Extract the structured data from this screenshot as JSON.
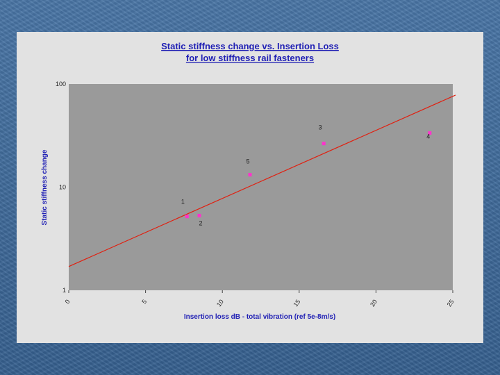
{
  "chart_data": {
    "type": "scatter",
    "title": [
      "Static stiffness change vs. Insertion Loss",
      "for low stiffness rail fasteners"
    ],
    "xlabel": "Insertion loss dB - total vibration (ref 5e-8m/s)",
    "ylabel": "Static stiffness change",
    "xlim": [
      0,
      25
    ],
    "ylim": [
      1,
      100
    ],
    "yscale": "log",
    "x_ticks": [
      "0",
      "5",
      "10",
      "15",
      "20",
      "25"
    ],
    "y_ticks": [
      "1",
      "10",
      "100"
    ],
    "grid": false,
    "plot_background": "#9a9a9a",
    "point_color": "#ff33cc",
    "trendline_color": "#e02010",
    "points": [
      {
        "label": "1",
        "x": 7.7,
        "y": 5.2
      },
      {
        "label": "2",
        "x": 8.5,
        "y": 5.3
      },
      {
        "label": "3",
        "x": 16.6,
        "y": 26.5
      },
      {
        "label": "4",
        "x": 23.5,
        "y": 33.5
      },
      {
        "label": "5",
        "x": 11.8,
        "y": 13.2
      }
    ],
    "trendline": {
      "x": [
        0,
        25
      ],
      "y": [
        1.7,
        76
      ]
    }
  }
}
